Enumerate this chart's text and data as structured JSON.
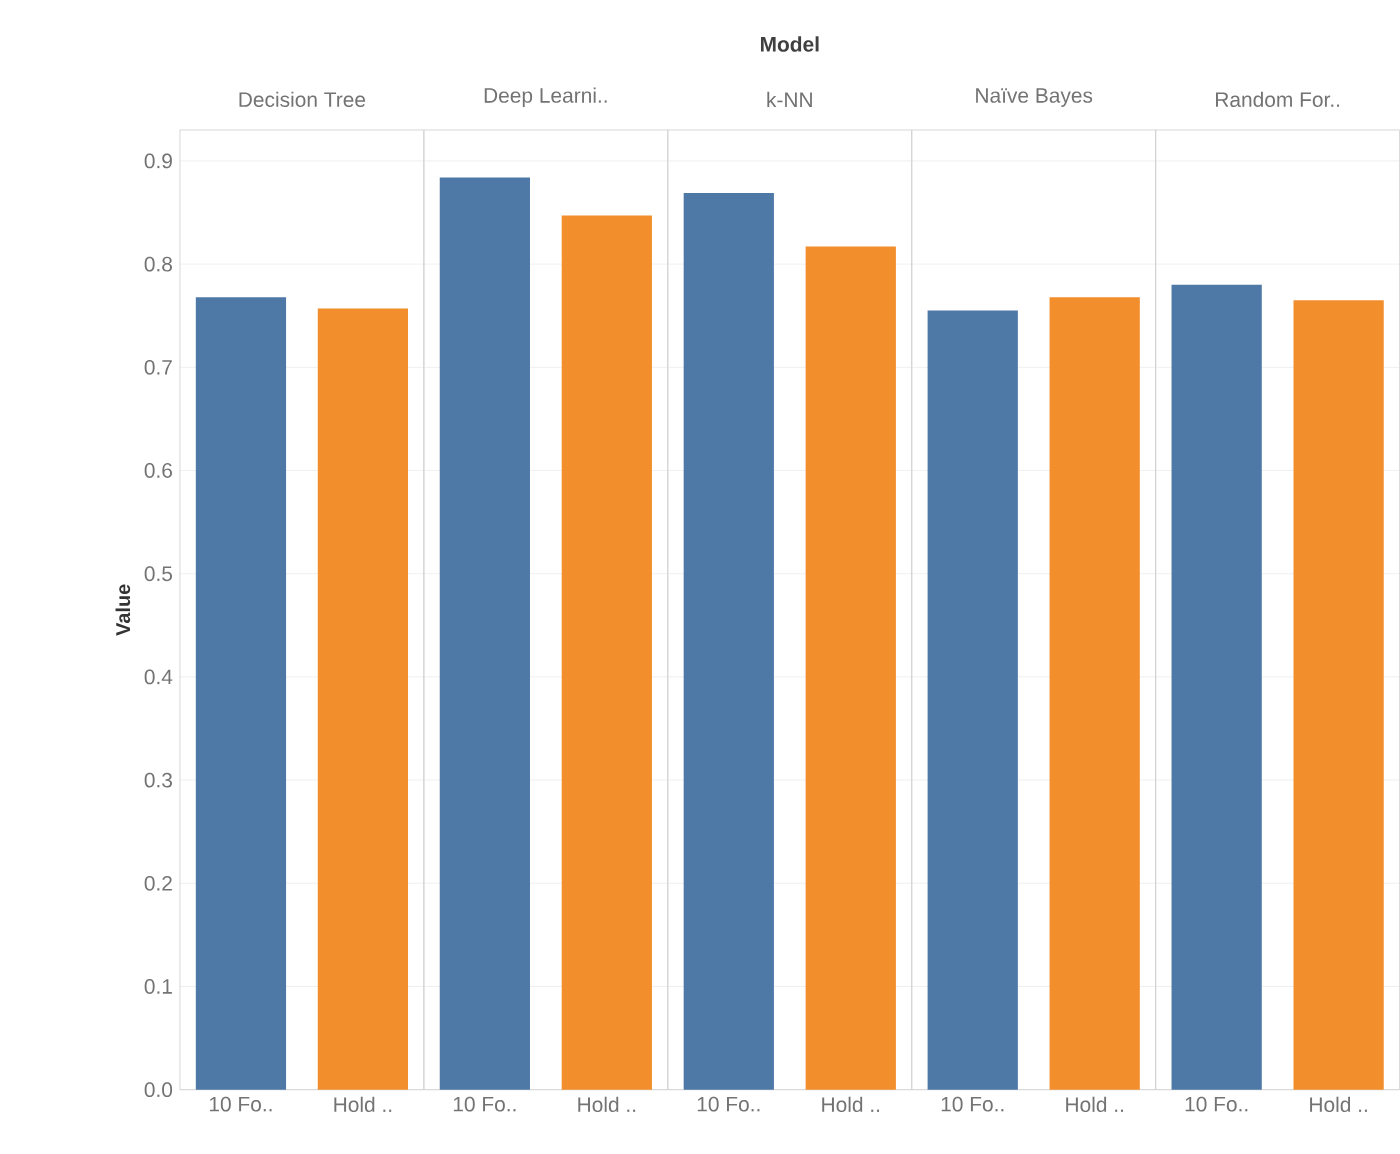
{
  "chart_data": [
    {
      "type": "bar",
      "title": "Decision Tree",
      "ylabel": "Value",
      "annotations": [
        "Model"
      ],
      "categories": [
        "10 Fo..",
        "Hold .."
      ],
      "values": [
        0.768,
        0.757
      ],
      "colors": [
        "#4e79a7",
        "#f28e2b"
      ],
      "ylim": [
        0,
        0.93
      ],
      "yticks": [
        {
          "value": 0,
          "label": "0.0"
        },
        0.1,
        0.2,
        0.3,
        0.4,
        0.5,
        0.6,
        0.7,
        0.8,
        0.9
      ],
      "grid": "y"
    },
    {
      "type": "bar",
      "title": "Deep Learni..",
      "categories": [
        "10 Fo..",
        "Hold .."
      ],
      "values": [
        0.884,
        0.847
      ],
      "colors": [
        "#4e79a7",
        "#f28e2b"
      ],
      "ylim": [
        0,
        0.93
      ],
      "yticks": [
        0,
        0.1,
        0.2,
        0.3,
        0.4,
        0.5,
        0.6,
        0.7,
        0.8,
        0.9
      ],
      "grid": "y",
      "tick_labels": "x"
    },
    {
      "type": "bar",
      "title": "k-NN",
      "categories": [
        "10 Fo..",
        "Hold .."
      ],
      "values": [
        0.869,
        0.817
      ],
      "colors": [
        "#4e79a7",
        "#f28e2b"
      ],
      "ylim": [
        0,
        0.93
      ],
      "yticks": [
        0,
        0.1,
        0.2,
        0.3,
        0.4,
        0.5,
        0.6,
        0.7,
        0.8,
        0.9
      ],
      "grid": "y",
      "tick_labels": "x"
    },
    {
      "type": "bar",
      "title": "Naïve Bayes",
      "categories": [
        "10 Fo..",
        "Hold .."
      ],
      "values": [
        0.755,
        0.768
      ],
      "colors": [
        "#4e79a7",
        "#f28e2b"
      ],
      "ylim": [
        0,
        0.93
      ],
      "yticks": [
        0,
        0.1,
        0.2,
        0.3,
        0.4,
        0.5,
        0.6,
        0.7,
        0.8,
        0.9
      ],
      "grid": "y",
      "tick_labels": "x"
    },
    {
      "type": "bar",
      "title": "Random For..",
      "categories": [
        "10 Fo..",
        "Hold .."
      ],
      "values": [
        0.78,
        0.765
      ],
      "colors": [
        "#4e79a7",
        "#f28e2b"
      ],
      "ylim": [
        0,
        0.93
      ],
      "yticks": [
        0,
        0.1,
        0.2,
        0.3,
        0.4,
        0.5,
        0.6,
        0.7,
        0.8,
        0.9
      ],
      "grid": "y",
      "tick_labels": "x"
    }
  ]
}
